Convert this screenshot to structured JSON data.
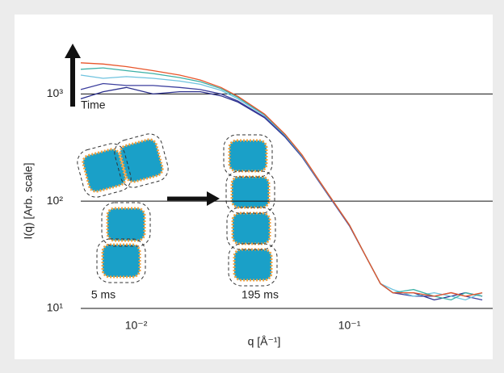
{
  "chart_data": {
    "type": "line",
    "x_label": "q [Å⁻¹]",
    "y_label": "I(q) [Arb. scale]",
    "annotations": [
      "Time",
      "5 ms",
      "195 ms"
    ],
    "x": [
      0.0055,
      0.007,
      0.009,
      0.012,
      0.016,
      0.02,
      0.025,
      0.03,
      0.04,
      0.05,
      0.06,
      0.07,
      0.08,
      0.1,
      0.12,
      0.14,
      0.16,
      0.2,
      0.25,
      0.3,
      0.35,
      0.42
    ],
    "series": [
      {
        "color": "#2b2f8c",
        "values": [
          900,
          1050,
          1150,
          1000,
          1050,
          1050,
          960,
          840,
          600,
          395,
          258,
          165,
          112,
          59,
          30,
          17,
          14,
          14,
          12,
          13,
          14,
          13
        ]
      },
      {
        "color": "#3c3f9e",
        "values": [
          1100,
          1250,
          1200,
          1200,
          1150,
          1100,
          1000,
          860,
          610,
          400,
          260,
          165,
          113,
          59,
          30,
          17,
          14,
          13,
          13,
          14,
          13,
          12
        ]
      },
      {
        "color": "#6fc3df",
        "values": [
          1500,
          1400,
          1450,
          1400,
          1320,
          1230,
          1080,
          900,
          630,
          410,
          265,
          168,
          114,
          60,
          30,
          17,
          15,
          13,
          14,
          13,
          12,
          14
        ]
      },
      {
        "color": "#3bb0a6",
        "values": [
          1700,
          1750,
          1650,
          1550,
          1420,
          1300,
          1120,
          930,
          640,
          415,
          268,
          170,
          115,
          60,
          30,
          17,
          14,
          15,
          13,
          12,
          14,
          13
        ]
      },
      {
        "color": "#e8552a",
        "values": [
          1950,
          1900,
          1800,
          1650,
          1500,
          1350,
          1150,
          950,
          650,
          420,
          270,
          170,
          115,
          60,
          30,
          17,
          14,
          14,
          13,
          14,
          13,
          14
        ]
      }
    ],
    "xlog": true,
    "ylog": true,
    "xlim": [
      0.0055,
      0.47
    ],
    "ylim": [
      10,
      3000
    ],
    "xticks": [
      {
        "value": 0.01,
        "label": "10⁻²"
      },
      {
        "value": 0.1,
        "label": "10⁻¹"
      }
    ],
    "yticks": [
      {
        "value": 10,
        "label": "10¹"
      },
      {
        "value": 100,
        "label": "10²"
      },
      {
        "value": 1000,
        "label": "10³"
      }
    ],
    "grid": true
  }
}
